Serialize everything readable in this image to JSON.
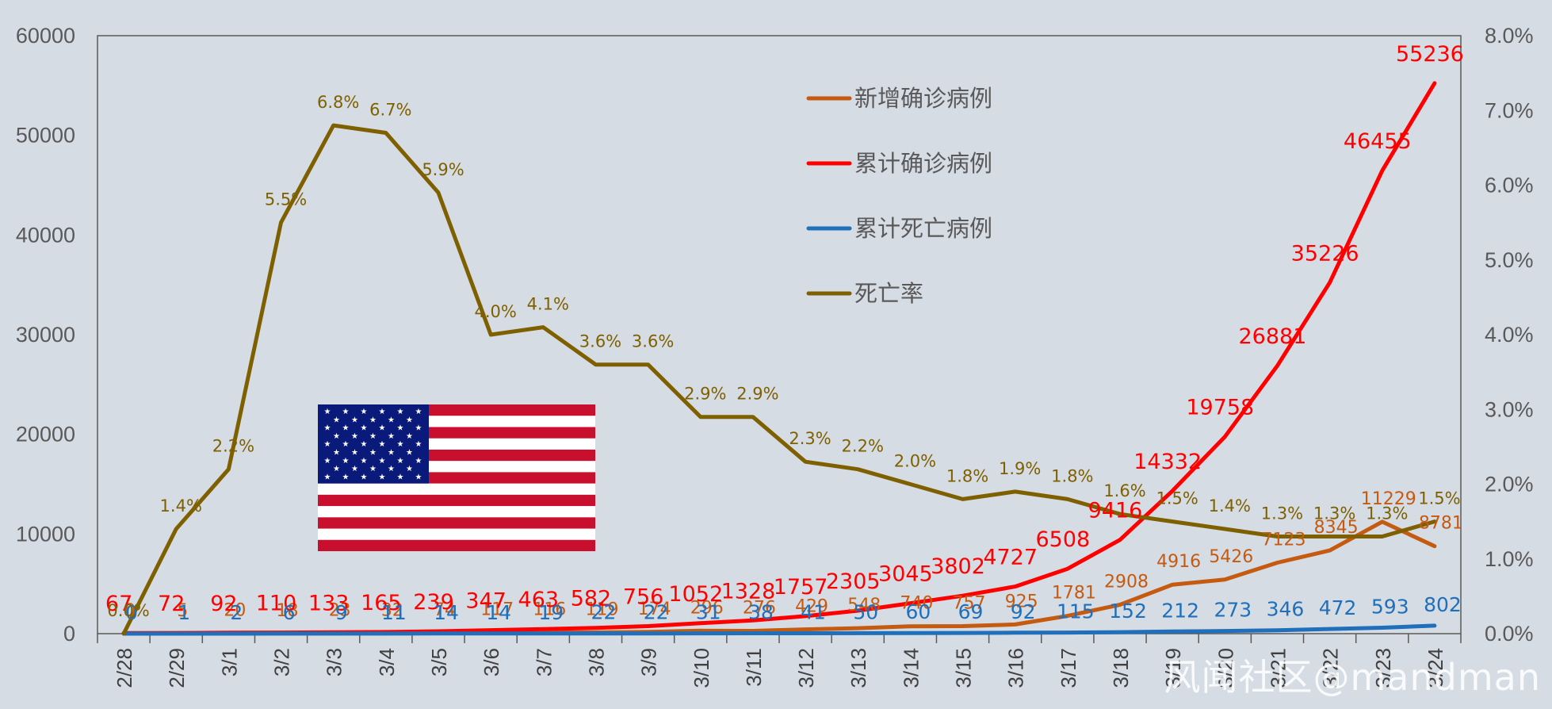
{
  "chart_data": {
    "type": "line",
    "categories": [
      "2/28",
      "2/29",
      "3/1",
      "3/2",
      "3/3",
      "3/4",
      "3/5",
      "3/6",
      "3/7",
      "3/8",
      "3/9",
      "3/10",
      "3/11",
      "3/12",
      "3/13",
      "3/14",
      "3/15",
      "3/16",
      "3/17",
      "3/18",
      "3/19",
      "3/20",
      "3/21",
      "3/22",
      "3/23",
      "3/24"
    ],
    "y_left": {
      "ticks": [
        0,
        10000,
        20000,
        30000,
        40000,
        50000,
        60000
      ],
      "ylim": [
        0,
        60000
      ]
    },
    "y_right": {
      "ticks": [
        "0.0%",
        "1.0%",
        "2.0%",
        "3.0%",
        "4.0%",
        "5.0%",
        "6.0%",
        "7.0%",
        "8.0%"
      ],
      "ylim": [
        0,
        0.08
      ]
    },
    "series": [
      {
        "name": "新增确诊病例",
        "axis": "left",
        "color": "#c55a11",
        "values": [
          0,
          5,
          20,
          18,
          23,
          32,
          74,
          117,
          116,
          119,
          174,
          296,
          276,
          429,
          548,
          740,
          757,
          925,
          1781,
          2908,
          4916,
          5426,
          7123,
          8345,
          11229,
          8781
        ],
        "labels": [
          "0",
          "5",
          "20",
          "18",
          "23",
          "32",
          "74",
          "117",
          "116",
          "119",
          "174",
          "296",
          "276",
          "429",
          "548",
          "740",
          "757",
          "925",
          "1781",
          "2908",
          "4916",
          "5426",
          "7123",
          "8345",
          "11229",
          "8781"
        ]
      },
      {
        "name": "累计确诊病例",
        "axis": "left",
        "color": "#ff0000",
        "values": [
          67,
          72,
          92,
          110,
          133,
          165,
          239,
          347,
          463,
          582,
          756,
          1052,
          1328,
          1757,
          2305,
          3045,
          3802,
          4727,
          6508,
          9416,
          14332,
          19758,
          26881,
          35226,
          46455,
          55236
        ],
        "labels": [
          "67",
          "72",
          "92",
          "110",
          "133",
          "165",
          "239",
          "347",
          "463",
          "582",
          "756",
          "1052",
          "1328",
          "1757",
          "2305",
          "3045",
          "3802",
          "4727",
          "6508",
          "9416",
          "14332",
          "19758",
          "26881",
          "35226",
          "46455",
          "55236"
        ]
      },
      {
        "name": "累计死亡病例",
        "axis": "left",
        "color": "#1f6fba",
        "values": [
          0,
          1,
          2,
          6,
          9,
          11,
          14,
          14,
          19,
          22,
          22,
          31,
          38,
          41,
          50,
          60,
          69,
          92,
          115,
          152,
          212,
          273,
          346,
          472,
          593,
          802
        ],
        "labels": [
          "0",
          "1",
          "2",
          "6",
          "9",
          "11",
          "14",
          "14",
          "19",
          "22",
          "22",
          "31",
          "38",
          "41",
          "50",
          "60",
          "69",
          "92",
          "115",
          "152",
          "212",
          "273",
          "346",
          "472",
          "593",
          "802"
        ]
      },
      {
        "name": "死亡率",
        "axis": "right",
        "color": "#7f6000",
        "values": [
          0.0,
          0.014,
          0.022,
          0.055,
          0.068,
          0.067,
          0.059,
          0.04,
          0.041,
          0.036,
          0.036,
          0.029,
          0.029,
          0.023,
          0.022,
          0.02,
          0.018,
          0.019,
          0.018,
          0.016,
          0.015,
          0.014,
          0.013,
          0.013,
          0.013,
          0.015
        ],
        "labels": [
          "0.0%",
          "1.4%",
          "2.2%",
          "5.5%",
          "6.8%",
          "6.7%",
          "5.9%",
          "4.0%",
          "4.1%",
          "3.6%",
          "3.6%",
          "2.9%",
          "2.9%",
          "2.3%",
          "2.2%",
          "2.0%",
          "1.8%",
          "1.9%",
          "1.8%",
          "1.6%",
          "1.5%",
          "1.4%",
          "1.3%",
          "1.3%",
          "1.3%",
          "1.5%"
        ]
      }
    ],
    "legend": [
      "新增确诊病例",
      "累计确诊病例",
      "累计死亡病例",
      "死亡率"
    ],
    "legend_position": "top-center",
    "grid": false,
    "background": "#d6dce4"
  },
  "watermark": "风闻社区@mandman",
  "flag_icon": "us-flag-icon"
}
